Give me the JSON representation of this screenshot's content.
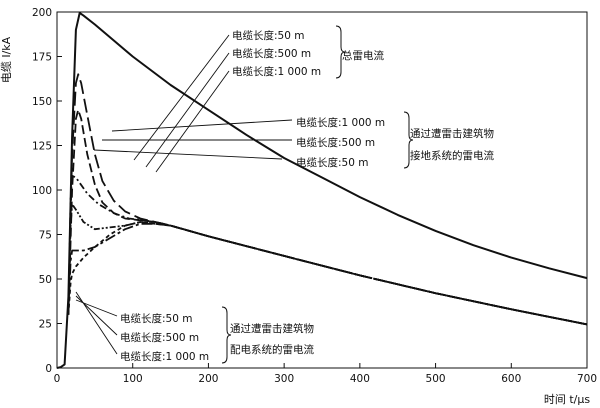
{
  "chart_data": {
    "type": "line",
    "xlabel": "时间 t/μs",
    "ylabel": "电缆 I/kA",
    "xlim": [
      0,
      700
    ],
    "ylim": [
      0,
      200
    ],
    "xticks": [
      0,
      100,
      200,
      300,
      400,
      500,
      600,
      700
    ],
    "yticks": [
      0,
      25,
      50,
      75,
      100,
      125,
      150,
      175,
      200
    ],
    "grid": false,
    "series": [
      {
        "group": "total",
        "style": "solid",
        "points": [
          [
            0,
            0
          ],
          [
            5,
            0.5
          ],
          [
            10,
            2
          ],
          [
            15,
            40
          ],
          [
            20,
            130
          ],
          [
            25,
            190
          ],
          [
            30,
            199.5
          ],
          [
            35,
            198
          ],
          [
            50,
            193
          ],
          [
            75,
            184
          ],
          [
            100,
            175
          ],
          [
            150,
            159
          ],
          [
            200,
            145
          ],
          [
            250,
            131
          ],
          [
            300,
            118
          ],
          [
            350,
            107
          ],
          [
            400,
            96
          ],
          [
            450,
            86
          ],
          [
            500,
            77
          ],
          [
            550,
            69
          ],
          [
            600,
            62
          ],
          [
            650,
            56
          ],
          [
            700,
            50.5
          ]
        ]
      },
      {
        "group": "grounding",
        "style": "long-dash",
        "points": [
          [
            15,
            30
          ],
          [
            20,
            120
          ],
          [
            25,
            160
          ],
          [
            28,
            165
          ],
          [
            32,
            160
          ],
          [
            40,
            142
          ],
          [
            50,
            120
          ],
          [
            60,
            105
          ],
          [
            75,
            94
          ],
          [
            90,
            88
          ],
          [
            110,
            84
          ],
          [
            130,
            82
          ],
          [
            150,
            80
          ],
          [
            200,
            74
          ],
          [
            300,
            63
          ],
          [
            400,
            52
          ],
          [
            500,
            42
          ],
          [
            600,
            33
          ],
          [
            700,
            24.5
          ]
        ]
      },
      {
        "group": "grounding",
        "style": "dash",
        "points": [
          [
            15,
            30
          ],
          [
            20,
            100
          ],
          [
            25,
            140
          ],
          [
            28,
            145
          ],
          [
            32,
            140
          ],
          [
            40,
            120
          ],
          [
            50,
            103
          ],
          [
            60,
            93
          ],
          [
            75,
            87
          ],
          [
            90,
            84
          ],
          [
            110,
            83
          ],
          [
            130,
            82
          ],
          [
            150,
            80
          ],
          [
            200,
            74
          ],
          [
            300,
            63
          ],
          [
            400,
            52
          ],
          [
            500,
            42
          ],
          [
            600,
            33
          ],
          [
            700,
            24.5
          ]
        ]
      },
      {
        "group": "grounding",
        "style": "dash-dot",
        "points": [
          [
            15,
            30
          ],
          [
            18,
            95
          ],
          [
            20,
            108
          ],
          [
            25,
            107
          ],
          [
            30,
            104
          ],
          [
            40,
            98
          ],
          [
            55,
            92
          ],
          [
            75,
            87
          ],
          [
            95,
            84
          ],
          [
            115,
            83
          ],
          [
            130,
            82
          ],
          [
            150,
            80
          ],
          [
            200,
            74
          ],
          [
            300,
            63
          ],
          [
            400,
            52
          ],
          [
            500,
            42
          ],
          [
            600,
            33
          ],
          [
            700,
            24.5
          ]
        ]
      },
      {
        "group": "distribution",
        "style": "dash-dot-dot",
        "points": [
          [
            15,
            30
          ],
          [
            18,
            80
          ],
          [
            20,
            92
          ],
          [
            25,
            89
          ],
          [
            35,
            82
          ],
          [
            50,
            78
          ],
          [
            70,
            79
          ],
          [
            90,
            80
          ],
          [
            110,
            82
          ],
          [
            130,
            81
          ],
          [
            150,
            80
          ],
          [
            200,
            74
          ],
          [
            300,
            63
          ],
          [
            400,
            52
          ],
          [
            500,
            42
          ],
          [
            600,
            33
          ],
          [
            700,
            24.5
          ]
        ]
      },
      {
        "group": "distribution",
        "style": "dash-long",
        "points": [
          [
            15,
            30
          ],
          [
            18,
            60
          ],
          [
            20,
            66
          ],
          [
            25,
            66
          ],
          [
            35,
            66
          ],
          [
            50,
            68
          ],
          [
            70,
            73
          ],
          [
            90,
            78
          ],
          [
            110,
            81
          ],
          [
            130,
            81
          ],
          [
            150,
            80
          ],
          [
            200,
            74
          ],
          [
            300,
            63
          ],
          [
            400,
            52
          ],
          [
            500,
            42
          ],
          [
            600,
            33
          ],
          [
            700,
            24.5
          ]
        ]
      },
      {
        "group": "distribution",
        "style": "short-dash",
        "points": [
          [
            15,
            30
          ],
          [
            18,
            48
          ],
          [
            20,
            53
          ],
          [
            25,
            57
          ],
          [
            35,
            62
          ],
          [
            50,
            68
          ],
          [
            70,
            75
          ],
          [
            90,
            80
          ],
          [
            110,
            82
          ],
          [
            130,
            81
          ],
          [
            150,
            80
          ],
          [
            200,
            74
          ],
          [
            300,
            63
          ],
          [
            400,
            52
          ],
          [
            500,
            42
          ],
          [
            600,
            33
          ],
          [
            700,
            24.5
          ]
        ]
      }
    ],
    "annotations": {
      "total": {
        "labels": [
          "电缆长度:50 m",
          "电缆长度:500 m",
          "电缆长度:1 000 m"
        ],
        "group_label": [
          "总雷电流"
        ]
      },
      "grounding": {
        "labels": [
          "电缆长度:1 000 m",
          "电缆长度:500 m",
          "电缆长度:50 m"
        ],
        "group_label": [
          "通过遭雷击建筑物",
          "接地系统的雷电流"
        ]
      },
      "distribution": {
        "labels": [
          "电缆长度:50 m",
          "电缆长度:500 m",
          "电缆长度:1 000 m"
        ],
        "group_label": [
          "通过遭雷击建筑物",
          "配电系统的雷电流"
        ]
      }
    }
  }
}
